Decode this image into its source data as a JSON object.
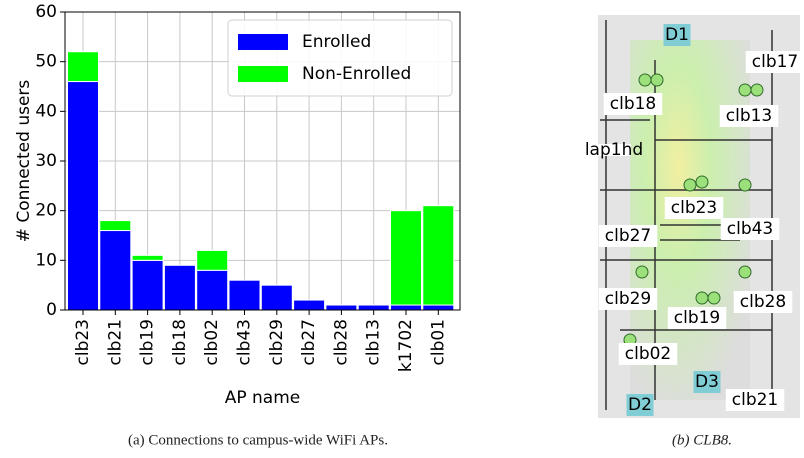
{
  "chart_data": {
    "type": "stacked_bar",
    "categories": [
      "clb23",
      "clb21",
      "clb19",
      "clb18",
      "clb02",
      "clb43",
      "clb29",
      "clb27",
      "clb28",
      "clb13",
      "k1702",
      "clb01"
    ],
    "series": [
      {
        "name": "Enrolled",
        "color": "#0000ff",
        "values": [
          46,
          16,
          10,
          9,
          8,
          6,
          5,
          2,
          1,
          1,
          1,
          1
        ]
      },
      {
        "name": "Non-Enrolled",
        "color": "#00ff00",
        "values": [
          6,
          2,
          1,
          0,
          4,
          0,
          0,
          0,
          0,
          0,
          19,
          20
        ]
      }
    ],
    "ylabel": "# Connected users",
    "xlabel": "AP name",
    "ylim": [
      0,
      60
    ],
    "yticks": [
      0,
      10,
      20,
      30,
      40,
      50,
      60
    ],
    "grid": true,
    "legend": "upper right"
  },
  "map": {
    "labels": [
      "D1",
      "clb17",
      "clb18",
      "clb13",
      "lap1hd",
      "clb23",
      "clb27",
      "clb43",
      "clb29",
      "clb28",
      "clb19",
      "clb02",
      "D3",
      "D2",
      "clb21"
    ]
  },
  "captions": [
    "(a) Connections to campus-wide WiFi APs.",
    "(b) CLB8."
  ]
}
